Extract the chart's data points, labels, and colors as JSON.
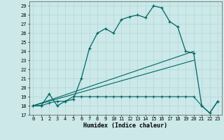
{
  "xlabel": "Humidex (Indice chaleur)",
  "bg_color": "#cce8e8",
  "line_color": "#006666",
  "xlim": [
    -0.5,
    23.5
  ],
  "ylim": [
    17,
    29.5
  ],
  "xticks": [
    0,
    1,
    2,
    3,
    4,
    5,
    6,
    7,
    8,
    9,
    10,
    11,
    12,
    13,
    14,
    15,
    16,
    17,
    18,
    19,
    20,
    21,
    22,
    23
  ],
  "yticks": [
    17,
    18,
    19,
    20,
    21,
    22,
    23,
    24,
    25,
    26,
    27,
    28,
    29
  ],
  "curve1_x": [
    0,
    1,
    2,
    3,
    4,
    5,
    6,
    7,
    8,
    9,
    10,
    11,
    12,
    13,
    14,
    15,
    16,
    17,
    18,
    19,
    20,
    21,
    22,
    23
  ],
  "curve1_y": [
    18.0,
    18.0,
    19.3,
    18.0,
    18.5,
    18.7,
    21.0,
    24.3,
    26.0,
    26.5,
    26.0,
    27.5,
    27.8,
    28.0,
    27.7,
    29.0,
    28.8,
    27.3,
    26.7,
    24.0,
    23.8,
    18.0,
    17.2,
    18.5
  ],
  "curve2_x": [
    0,
    1,
    2,
    3,
    4,
    5,
    6,
    7,
    8,
    9,
    10,
    11,
    12,
    13,
    14,
    15,
    16,
    17,
    18,
    19,
    20,
    21,
    22,
    23
  ],
  "curve2_y": [
    18.0,
    18.0,
    18.3,
    18.5,
    18.5,
    19.0,
    19.0,
    19.0,
    19.0,
    19.0,
    19.0,
    19.0,
    19.0,
    19.0,
    19.0,
    19.0,
    19.0,
    19.0,
    19.0,
    19.0,
    19.0,
    18.0,
    17.2,
    18.5
  ],
  "line1_x": [
    0,
    20
  ],
  "line1_y": [
    18.0,
    24.0
  ],
  "line2_x": [
    0,
    20
  ],
  "line2_y": [
    18.0,
    23.0
  ]
}
